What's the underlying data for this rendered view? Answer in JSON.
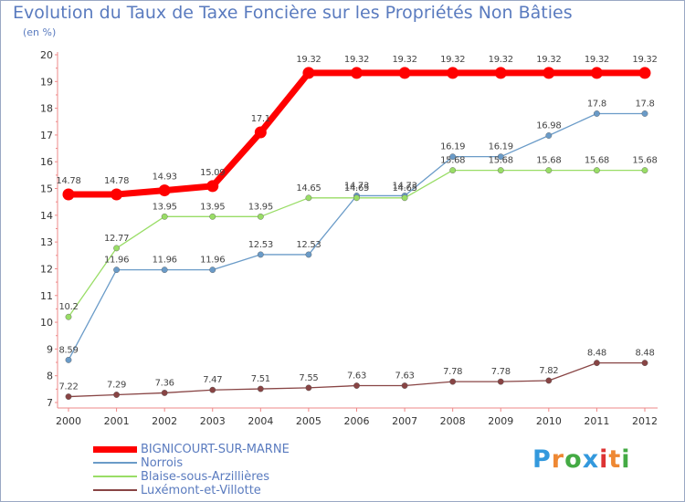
{
  "chart_data": {
    "type": "line",
    "title": "Evolution du Taux de Taxe Foncière sur les Propriétés Non Bâties",
    "ylabel": "(en %)",
    "xlabel": "",
    "x": [
      "2000",
      "2001",
      "2002",
      "2003",
      "2004",
      "2005",
      "2006",
      "2007",
      "2008",
      "2009",
      "2010",
      "2011",
      "2012"
    ],
    "ylim": [
      7,
      20
    ],
    "yticks": [
      "7",
      "8",
      "9",
      "10",
      "11",
      "12",
      "13",
      "14",
      "15",
      "16",
      "17",
      "18",
      "19",
      "20"
    ],
    "grid": false,
    "legend": "bottom-left",
    "series": [
      {
        "name": "BIGNICOURT-SUR-MARNE",
        "color": "#ff0000",
        "values": [
          14.78,
          14.78,
          14.93,
          15.09,
          17.1,
          19.32,
          19.32,
          19.32,
          19.32,
          19.32,
          19.32,
          19.32,
          19.32
        ],
        "labels": [
          "14.78",
          "14.78",
          "14.93",
          "15.09",
          "17.1",
          "19.32",
          "19.32",
          "19.32",
          "19.32",
          "19.32",
          "19.32",
          "19.32",
          "19.32"
        ]
      },
      {
        "name": "Norrois",
        "color": "#6a9bc8",
        "values": [
          8.59,
          11.96,
          11.96,
          11.96,
          12.53,
          12.53,
          14.73,
          14.73,
          16.19,
          16.19,
          16.98,
          17.8,
          17.8
        ],
        "labels": [
          "8.59",
          "11.96",
          "11.96",
          "11.96",
          "12.53",
          "12.53",
          "14.73",
          "14.73",
          "16.19",
          "16.19",
          "16.98",
          "17.8",
          "17.8"
        ]
      },
      {
        "name": "Blaise-sous-Arzillières",
        "color": "#99dd66",
        "values": [
          10.2,
          12.77,
          13.95,
          13.95,
          13.95,
          14.65,
          14.65,
          14.65,
          15.68,
          15.68,
          15.68,
          15.68,
          15.68
        ],
        "labels": [
          "10.2",
          "12.77",
          "13.95",
          "13.95",
          "13.95",
          "14.65",
          "14.65",
          "14.65",
          "15.68",
          "15.68",
          "15.68",
          "15.68",
          "15.68"
        ]
      },
      {
        "name": "Luxémont-et-Villotte",
        "color": "#884444",
        "values": [
          7.22,
          7.29,
          7.36,
          7.47,
          7.51,
          7.55,
          7.63,
          7.63,
          7.78,
          7.78,
          7.82,
          8.48,
          8.48
        ],
        "labels": [
          "7.22",
          "7.29",
          "7.36",
          "7.47",
          "7.51",
          "7.55",
          "7.63",
          "7.63",
          "7.78",
          "7.78",
          "7.82",
          "8.48",
          "8.48"
        ]
      }
    ]
  },
  "logo": {
    "letters": [
      "P",
      "r",
      "o",
      "x",
      "i",
      "t",
      "i"
    ],
    "colors": [
      "#3399dd",
      "#ee8833",
      "#44aa44",
      "#3399dd",
      "#dd3333",
      "#ee8833",
      "#44aa44"
    ]
  }
}
